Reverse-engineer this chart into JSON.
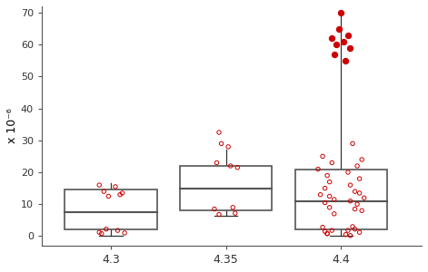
{
  "categories": [
    4.3,
    4.35,
    4.4
  ],
  "box_data": {
    "4.3": {
      "q1": 2.0,
      "median": 7.5,
      "q3": 14.5,
      "whisker_low": 0.0,
      "whisker_high": 16.5,
      "scatter_y": [
        1.2,
        1.8,
        2.2,
        1.0,
        0.8,
        13.0,
        14.0,
        15.5,
        16.0,
        13.5,
        12.5
      ],
      "scatter_x_offset": [
        -0.005,
        0.003,
        -0.002,
        0.006,
        -0.004,
        0.004,
        -0.003,
        0.002,
        -0.005,
        0.005,
        -0.001
      ],
      "outliers_filled_y": [],
      "outliers_filled_x_offset": []
    },
    "4.35": {
      "q1": 8.0,
      "median": 15.0,
      "q3": 22.0,
      "whisker_low": 6.5,
      "whisker_high": 27.0,
      "scatter_y": [
        6.8,
        7.2,
        8.5,
        9.0,
        22.0,
        23.0,
        21.5,
        29.0,
        28.0,
        32.5
      ],
      "scatter_x_offset": [
        -0.003,
        0.004,
        -0.005,
        0.003,
        0.002,
        -0.004,
        0.005,
        -0.002,
        0.001,
        -0.003
      ],
      "outliers_filled_y": [],
      "outliers_filled_x_offset": []
    },
    "4.4": {
      "q1": 2.0,
      "median": 11.0,
      "q3": 21.0,
      "whisker_low": 0.0,
      "whisker_high": 70.0,
      "scatter_y": [
        0.2,
        0.8,
        1.2,
        1.8,
        2.2,
        2.8,
        0.5,
        1.5,
        3.0,
        8.0,
        9.0,
        10.0,
        11.5,
        12.0,
        13.0,
        14.0,
        15.0,
        16.0,
        17.0,
        18.0,
        19.0,
        20.0,
        21.0,
        22.0,
        23.0,
        24.0,
        25.0,
        29.0,
        7.0,
        8.5,
        10.5,
        11.0,
        12.5,
        13.5,
        0.8,
        1.8
      ],
      "scatter_x_offset": [
        0.004,
        -0.006,
        0.008,
        -0.004,
        0.006,
        -0.008,
        0.002,
        -0.007,
        0.005,
        0.009,
        -0.005,
        0.007,
        -0.003,
        0.01,
        -0.009,
        0.006,
        -0.007,
        0.004,
        -0.005,
        0.008,
        -0.006,
        0.003,
        -0.01,
        0.007,
        -0.004,
        0.009,
        -0.008,
        0.005,
        -0.003,
        0.006,
        -0.007,
        0.004,
        -0.005,
        0.008,
        -0.006,
        0.003
      ],
      "outliers_filled_y": [
        55.0,
        57.0,
        59.0,
        60.0,
        61.0,
        62.0,
        63.0,
        65.0,
        70.0
      ],
      "outliers_filled_x_offset": [
        0.002,
        -0.003,
        0.004,
        -0.002,
        0.001,
        -0.004,
        0.003,
        -0.001,
        0.0
      ]
    }
  },
  "box_width": 0.04,
  "box_color": "white",
  "box_edge_color": "#555555",
  "median_color": "#555555",
  "whisker_color": "#333333",
  "scatter_open_color": "#cc0000",
  "scatter_filled_color": "#cc0000",
  "scatter_size_open": 10,
  "scatter_size_filled": 20,
  "ylabel": "x 10⁻⁶",
  "ylim": [
    -3,
    72
  ],
  "yticks": [
    0,
    10,
    20,
    30,
    40,
    50,
    60,
    70
  ],
  "xticks": [
    4.3,
    4.35,
    4.4
  ],
  "xticklabels": [
    "4.3",
    "4.35",
    "4.4"
  ],
  "xlim": [
    4.27,
    4.435
  ],
  "background_color": "white",
  "figure_color": "white"
}
